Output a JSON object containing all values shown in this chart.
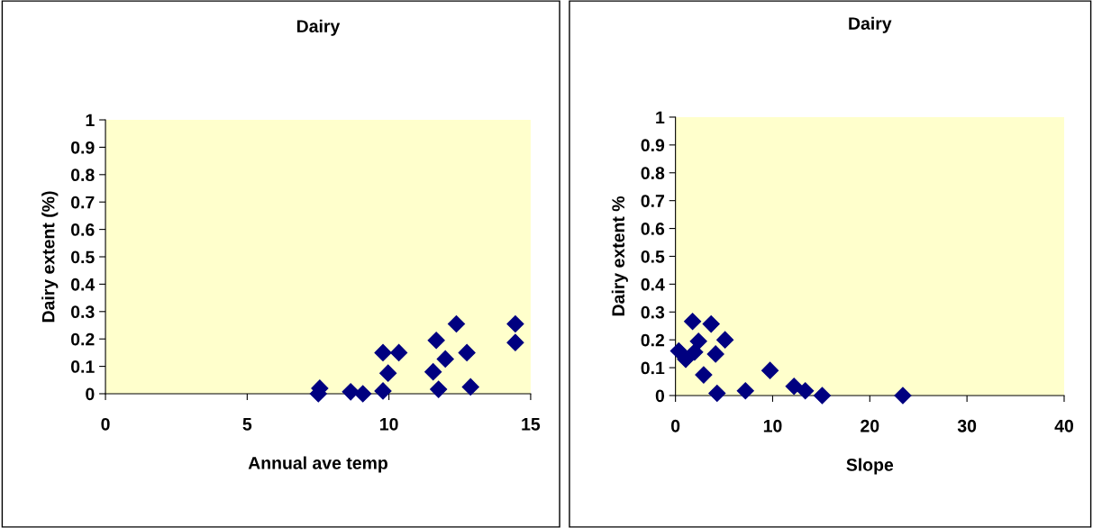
{
  "chart_data": [
    {
      "type": "scatter",
      "title": "Dairy",
      "xlabel": "Annual ave temp",
      "ylabel": "Dairy extent (%)",
      "marker": "diamond",
      "grid": false,
      "legend": false,
      "xlim": [
        0,
        15
      ],
      "xticks": [
        0,
        5,
        10,
        15
      ],
      "ylim": [
        0,
        1
      ],
      "yticks": [
        0,
        0.1,
        0.2,
        0.3,
        0.4,
        0.5,
        0.6,
        0.7,
        0.8,
        0.9,
        1
      ],
      "series": [
        {
          "color": "#000080",
          "x": [
            7.51,
            7.56,
            8.65,
            9.08,
            9.79,
            9.79,
            9.97,
            10.35,
            11.56,
            11.67,
            11.75,
            11.99,
            12.38,
            12.75,
            12.88,
            14.46,
            14.46
          ],
          "values": [
            0,
            0.02,
            0.007,
            0,
            0.01,
            0.15,
            0.075,
            0.15,
            0.08,
            0.195,
            0.016,
            0.127,
            0.255,
            0.15,
            0.025,
            0.255,
            0.187
          ]
        }
      ]
    },
    {
      "type": "scatter",
      "title": "Dairy",
      "xlabel": "Slope",
      "ylabel": "Dairy extent %",
      "marker": "diamond",
      "grid": false,
      "legend": false,
      "xlim": [
        0,
        40
      ],
      "xticks": [
        0,
        10,
        20,
        30,
        40
      ],
      "ylim": [
        0,
        1
      ],
      "yticks": [
        0,
        0.1,
        0.2,
        0.3,
        0.4,
        0.5,
        0.6,
        0.7,
        0.8,
        0.9,
        1
      ],
      "series": [
        {
          "color": "#000080",
          "x": [
            0.34,
            1.05,
            1.76,
            1.97,
            2.37,
            2.9,
            3.67,
            4.13,
            4.28,
            5.1,
            7.2,
            9.73,
            12.2,
            13.36,
            15.1,
            23.4
          ],
          "values": [
            0.16,
            0.13,
            0.266,
            0.156,
            0.195,
            0.074,
            0.257,
            0.149,
            0.008,
            0.2,
            0.017,
            0.09,
            0.033,
            0.017,
            0,
            0
          ]
        }
      ]
    }
  ]
}
